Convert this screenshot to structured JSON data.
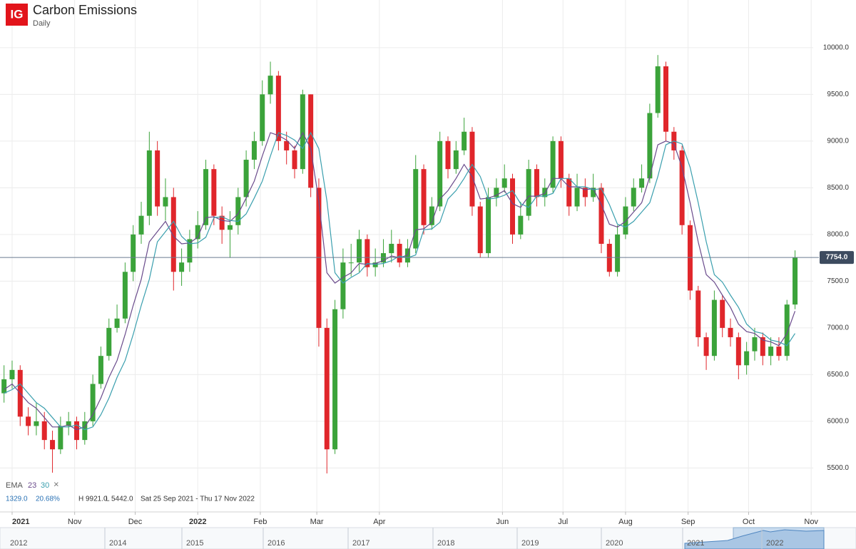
{
  "chart_data": {
    "type": "candlestick",
    "logo": "IG",
    "title": "Carbon Emissions",
    "subtitle": "Daily",
    "up_color": "#3ba33a",
    "down_color": "#e0262b",
    "x": [
      "2021-09-27",
      "2021-10-01",
      "2021-10-05",
      "2021-10-09",
      "2021-10-13",
      "2021-10-17",
      "2021-10-21",
      "2021-10-25",
      "2021-10-29",
      "2021-11-02",
      "2021-11-06",
      "2021-11-10",
      "2021-11-14",
      "2021-11-18",
      "2021-11-22",
      "2021-11-26",
      "2021-11-30",
      "2021-12-04",
      "2021-12-08",
      "2021-12-12",
      "2021-12-16",
      "2021-12-20",
      "2021-12-24",
      "2021-12-28",
      "2022-01-01",
      "2022-01-05",
      "2022-01-09",
      "2022-01-13",
      "2022-01-17",
      "2022-01-21",
      "2022-01-25",
      "2022-01-29",
      "2022-02-02",
      "2022-02-06",
      "2022-02-10",
      "2022-02-14",
      "2022-02-18",
      "2022-02-22",
      "2022-02-26",
      "2022-03-02",
      "2022-03-06",
      "2022-03-10",
      "2022-03-14",
      "2022-03-18",
      "2022-03-22",
      "2022-03-26",
      "2022-03-30",
      "2022-04-03",
      "2022-04-07",
      "2022-04-11",
      "2022-04-15",
      "2022-04-19",
      "2022-04-23",
      "2022-04-27",
      "2022-05-01",
      "2022-05-05",
      "2022-05-09",
      "2022-05-13",
      "2022-05-17",
      "2022-05-21",
      "2022-05-25",
      "2022-05-29",
      "2022-06-02",
      "2022-06-06",
      "2022-06-10",
      "2022-06-14",
      "2022-06-18",
      "2022-06-22",
      "2022-06-26",
      "2022-06-30",
      "2022-07-04",
      "2022-07-08",
      "2022-07-12",
      "2022-07-16",
      "2022-07-20",
      "2022-07-24",
      "2022-07-28",
      "2022-08-01",
      "2022-08-05",
      "2022-08-09",
      "2022-08-13",
      "2022-08-17",
      "2022-08-21",
      "2022-08-25",
      "2022-08-29",
      "2022-09-02",
      "2022-09-06",
      "2022-09-10",
      "2022-09-14",
      "2022-09-18",
      "2022-09-22",
      "2022-09-26",
      "2022-09-30",
      "2022-10-04",
      "2022-10-08",
      "2022-10-12",
      "2022-10-16",
      "2022-10-20",
      "2022-10-24"
    ],
    "open": [
      6300,
      6450,
      6550,
      6050,
      5950,
      6000,
      5800,
      5700,
      5950,
      6000,
      5800,
      6000,
      6400,
      6700,
      7000,
      7100,
      7600,
      8000,
      8200,
      8900,
      8300,
      8400,
      7600,
      7700,
      7950,
      8100,
      8700,
      8200,
      8050,
      8100,
      8400,
      8800,
      9000,
      9500,
      9700,
      9000,
      8900,
      8700,
      9500,
      8500,
      7000,
      5700,
      7200,
      7700,
      7700,
      7950,
      7650,
      7700,
      7800,
      7900,
      7700,
      7850,
      8700,
      8100,
      8300,
      9000,
      8700,
      8900,
      9100,
      8300,
      7800,
      8400,
      8500,
      8600,
      8000,
      8200,
      8700,
      8400,
      8500,
      9000,
      8600,
      8300,
      8500,
      8400,
      8500,
      7900,
      7600,
      8000,
      8300,
      8500,
      8600,
      9300,
      9800,
      9100,
      8900,
      8100,
      7400,
      6900,
      6700,
      7300,
      7000,
      6900,
      6600,
      6750,
      6900,
      6700,
      6800,
      6700,
      7250
    ],
    "high": [
      6600,
      6650,
      6600,
      6150,
      6200,
      6100,
      5900,
      6050,
      6100,
      6050,
      6100,
      6500,
      6800,
      7100,
      7250,
      7700,
      8100,
      8350,
      9100,
      9000,
      8600,
      8500,
      7850,
      8050,
      8250,
      8800,
      8750,
      8300,
      8250,
      8500,
      8900,
      9100,
      9650,
      9850,
      9750,
      9100,
      8950,
      9550,
      9500,
      8600,
      7100,
      7300,
      7850,
      7900,
      8050,
      8000,
      7850,
      7950,
      8050,
      7950,
      7950,
      8850,
      8750,
      8400,
      9100,
      9050,
      9000,
      9250,
      9150,
      8350,
      8500,
      8600,
      8750,
      8650,
      8350,
      8800,
      8750,
      8600,
      9050,
      9050,
      8650,
      8650,
      8600,
      8650,
      8550,
      7950,
      8100,
      8400,
      8600,
      8750,
      9400,
      9921,
      9850,
      9150,
      8950,
      8150,
      7450,
      6950,
      7400,
      7350,
      7100,
      6950,
      6850,
      7000,
      6950,
      6900,
      6900,
      7300,
      7830
    ],
    "low": [
      6200,
      6350,
      5950,
      5850,
      5850,
      5700,
      5450,
      5650,
      5850,
      5700,
      5750,
      5950,
      6350,
      6650,
      6950,
      7050,
      7500,
      7900,
      8100,
      8200,
      8150,
      7400,
      7450,
      7600,
      7850,
      8050,
      8100,
      7900,
      7750,
      8000,
      8300,
      8700,
      8950,
      9400,
      8900,
      8750,
      8600,
      8650,
      8400,
      6800,
      5442,
      5650,
      7100,
      7550,
      7600,
      7550,
      7550,
      7650,
      7700,
      7650,
      7650,
      7800,
      8000,
      8050,
      8250,
      8600,
      8650,
      8850,
      8200,
      7750,
      7750,
      8300,
      8450,
      7900,
      7950,
      8150,
      8300,
      8300,
      8450,
      8500,
      8200,
      8250,
      8300,
      8350,
      7800,
      7550,
      7550,
      7950,
      8250,
      8450,
      8550,
      9250,
      9000,
      8800,
      8000,
      7300,
      6800,
      6550,
      6650,
      6900,
      6800,
      6450,
      6500,
      6650,
      6600,
      6600,
      6650,
      6650,
      7200
    ],
    "close": [
      6450,
      6550,
      6050,
      5950,
      6000,
      5800,
      5700,
      5950,
      6000,
      5800,
      6000,
      6400,
      6700,
      7000,
      7100,
      7600,
      8000,
      8200,
      8900,
      8300,
      8400,
      7600,
      7700,
      7950,
      8100,
      8700,
      8200,
      8050,
      8100,
      8400,
      8800,
      9000,
      9500,
      9700,
      9000,
      8900,
      8700,
      9500,
      8500,
      7000,
      5700,
      7200,
      7700,
      7700,
      7950,
      7650,
      7700,
      7800,
      7900,
      7700,
      7850,
      8700,
      8100,
      8300,
      9000,
      8700,
      8900,
      9100,
      8300,
      7800,
      8400,
      8500,
      8600,
      8000,
      8200,
      8700,
      8400,
      8500,
      9000,
      8600,
      8300,
      8500,
      8400,
      8500,
      7900,
      7600,
      8000,
      8300,
      8500,
      8600,
      9300,
      9800,
      9100,
      8900,
      8100,
      7400,
      6900,
      6700,
      7300,
      7000,
      6900,
      6600,
      6750,
      6900,
      6700,
      6800,
      6700,
      7250,
      7754
    ],
    "indicator_name": "EMA",
    "indicators": [
      {
        "name": "23",
        "color": "#6a4b8c",
        "values": [
          6340,
          6400,
          6300,
          6200,
          6140,
          6040,
          5940,
          5940,
          5960,
          5910,
          5940,
          6070,
          6250,
          6470,
          6650,
          6930,
          7240,
          7520,
          7920,
          8030,
          8140,
          7980,
          7900,
          7910,
          7970,
          8180,
          8190,
          8150,
          8140,
          8220,
          8390,
          8570,
          8840,
          9090,
          9060,
          9010,
          8920,
          9090,
          8920,
          8360,
          7590,
          7480,
          7540,
          7590,
          7690,
          7680,
          7690,
          7720,
          7770,
          7750,
          7780,
          8050,
          8060,
          8130,
          8380,
          8470,
          8600,
          8750,
          8620,
          8380,
          8390,
          8420,
          8470,
          8330,
          8290,
          8410,
          8410,
          8440,
          8600,
          8600,
          8510,
          8510,
          8480,
          8490,
          8320,
          8110,
          8080,
          8140,
          8240,
          8340,
          8620,
          8960,
          9000,
          8970,
          8720,
          8340,
          7920,
          7570,
          7490,
          7350,
          7220,
          7040,
          6960,
          6940,
          6870,
          6850,
          6810,
          6940,
          7180
        ]
      },
      {
        "name": "30",
        "color": "#3a9fae",
        "values": [
          6300,
          6340,
          6400,
          6300,
          6200,
          6140,
          6040,
          5940,
          5940,
          5960,
          5910,
          5940,
          6070,
          6250,
          6470,
          6650,
          6930,
          7240,
          7520,
          7920,
          8030,
          8140,
          7980,
          7900,
          7910,
          7970,
          8180,
          8190,
          8150,
          8140,
          8220,
          8390,
          8570,
          8840,
          9090,
          9060,
          9010,
          8920,
          9090,
          8920,
          8360,
          7590,
          7480,
          7540,
          7590,
          7690,
          7680,
          7690,
          7720,
          7770,
          7750,
          7780,
          8050,
          8060,
          8130,
          8380,
          8470,
          8600,
          8750,
          8620,
          8380,
          8390,
          8420,
          8470,
          8330,
          8290,
          8410,
          8410,
          8440,
          8600,
          8600,
          8510,
          8510,
          8480,
          8490,
          8320,
          8110,
          8080,
          8140,
          8240,
          8340,
          8620,
          8960,
          9000,
          8970,
          8720,
          8340,
          7920,
          7570,
          7490,
          7350,
          7220,
          7040,
          6960,
          6940,
          6870,
          6850,
          6810,
          6940
        ]
      }
    ],
    "close_symbol": "×",
    "last_price": {
      "value": 7754,
      "label": "7754.0"
    },
    "stats": [
      "1329.0",
      "20.68%",
      "H 9921.0",
      "L 5442.0",
      "Sat 25 Sep 2021 - Thu 17 Nov 2022"
    ],
    "xlim": [
      "2021-09-25",
      "2022-11-02"
    ],
    "xticks": [
      {
        "value": "2021-10-01",
        "label": "2021"
      },
      {
        "value": "2021-11-01",
        "label": "Nov"
      },
      {
        "value": "2021-12-01",
        "label": "Dec"
      },
      {
        "value": "2022-01-01",
        "label": "2022"
      },
      {
        "value": "2022-02-01",
        "label": "Feb"
      },
      {
        "value": "2022-03-01",
        "label": "Mar"
      },
      {
        "value": "2022-04-01",
        "label": "Apr"
      },
      {
        "value": "2022-06-01",
        "label": "Jun"
      },
      {
        "value": "2022-07-01",
        "label": "Jul"
      },
      {
        "value": "2022-08-01",
        "label": "Aug"
      },
      {
        "value": "2022-09-01",
        "label": "Sep"
      },
      {
        "value": "2022-10-01",
        "label": "Oct"
      },
      {
        "value": "2022-11-01",
        "label": "Nov"
      }
    ],
    "ylim": [
      5030,
      10510
    ],
    "yticks": [
      {
        "value": 5500,
        "label": "5500.0"
      },
      {
        "value": 6000,
        "label": "6000.0"
      },
      {
        "value": 6500,
        "label": "6500.0"
      },
      {
        "value": 7000,
        "label": "7000.0"
      },
      {
        "value": 7500,
        "label": "7500.0"
      },
      {
        "value": 8000,
        "label": "8000.0"
      },
      {
        "value": 8500,
        "label": "8500.0"
      },
      {
        "value": 9000,
        "label": "9000.0"
      },
      {
        "value": 9500,
        "label": "9500.0"
      },
      {
        "value": 10000,
        "label": "10000.0"
      }
    ],
    "grid": true,
    "navigator_labels": [
      "2012",
      "2014",
      "2015",
      "2016",
      "2017",
      "2018",
      "2019",
      "2020",
      "2021",
      "2022"
    ]
  }
}
